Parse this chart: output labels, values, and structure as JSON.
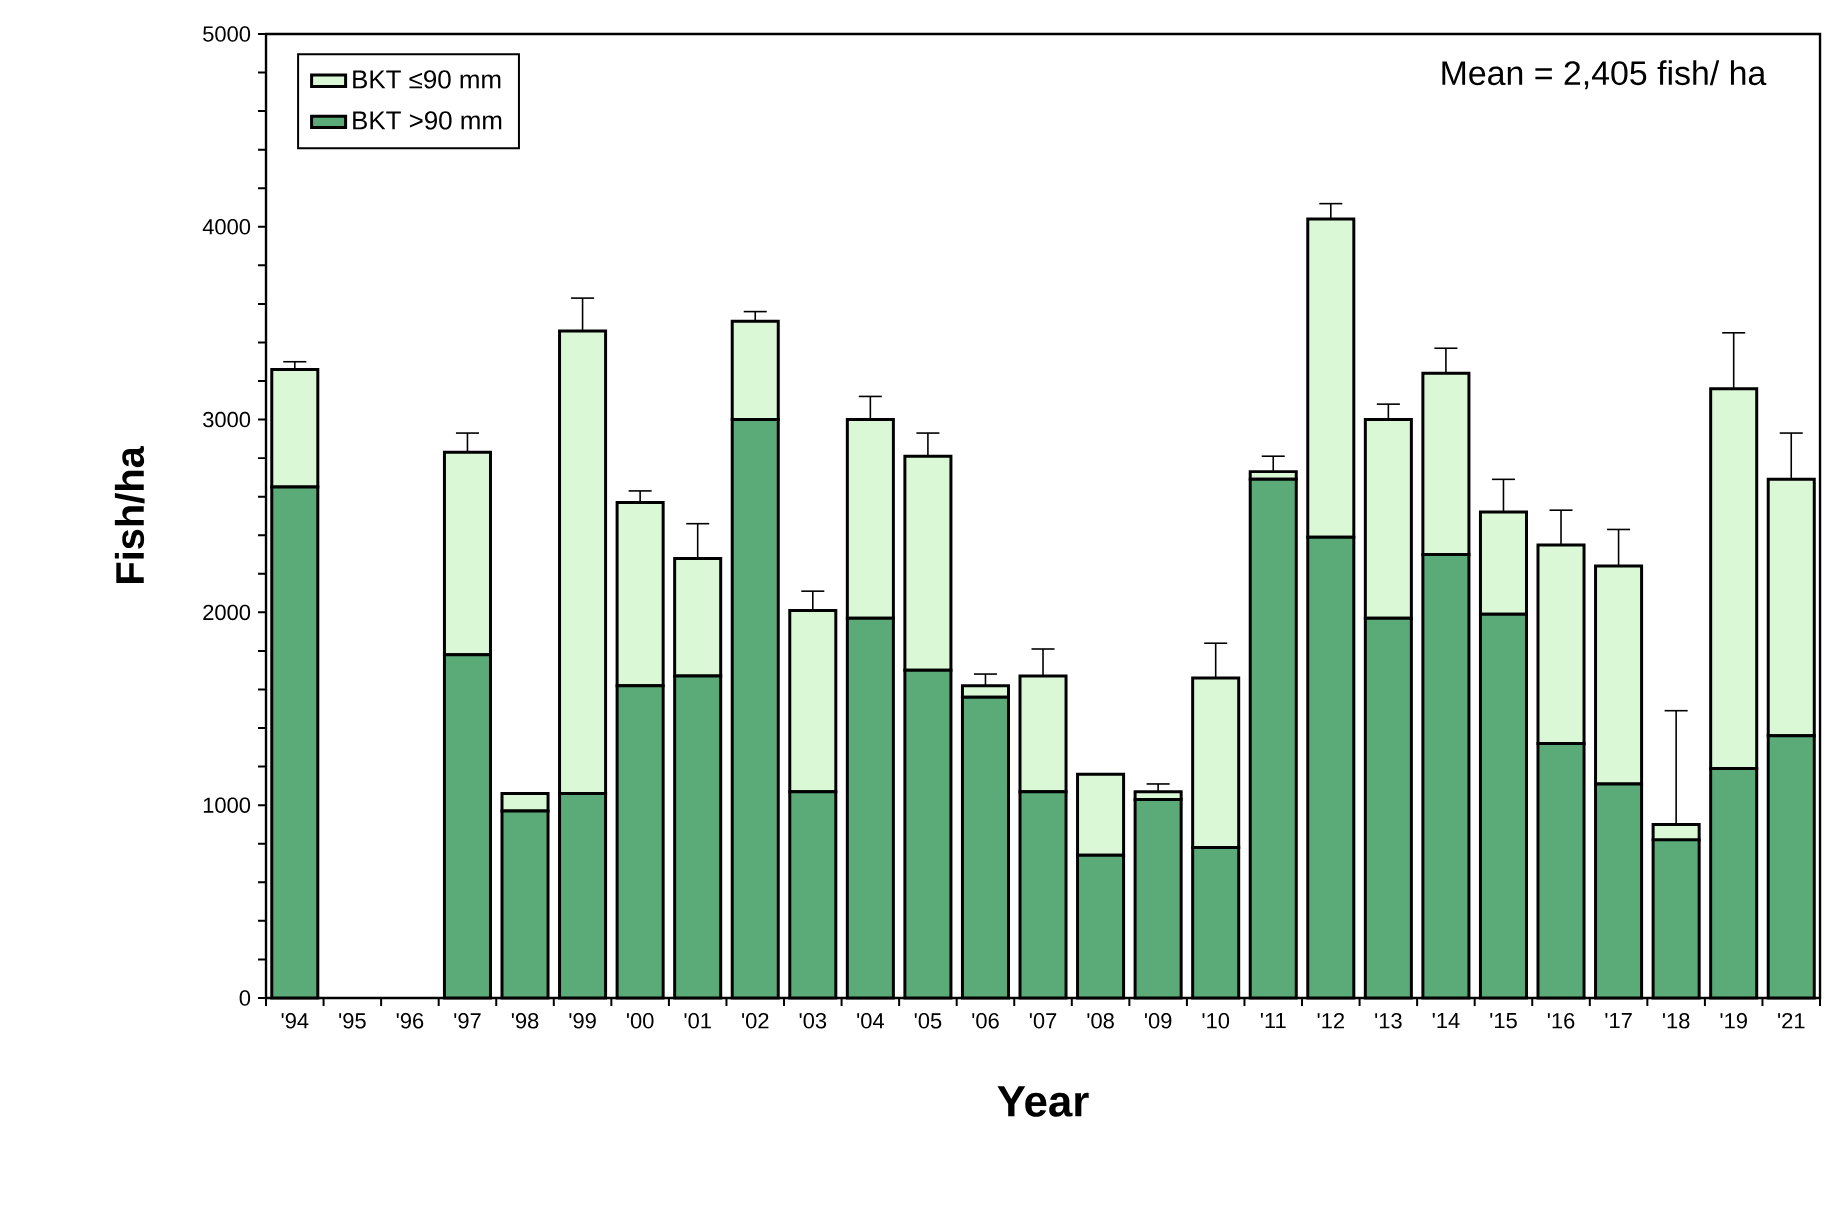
{
  "chart_data": {
    "type": "bar",
    "stacked": true,
    "xlabel": "Year",
    "ylabel": "Fish/ha",
    "categories": [
      "'94",
      "'95",
      "'96",
      "'97",
      "'98",
      "'99",
      "'00",
      "'01",
      "'02",
      "'03",
      "'04",
      "'05",
      "'06",
      "'07",
      "'08",
      "'09",
      "'10",
      "'11",
      "'12",
      "'13",
      "'14",
      "'15",
      "'16",
      "'17",
      "'18",
      "'19",
      "'21"
    ],
    "series": [
      {
        "name": "BKT >90 mm",
        "color": "#5aab78",
        "values": [
          2650,
          null,
          null,
          1780,
          970,
          1060,
          1620,
          1670,
          3000,
          1070,
          1970,
          1700,
          1560,
          1070,
          740,
          1030,
          780,
          2690,
          2390,
          1970,
          2300,
          1990,
          1320,
          1110,
          820,
          1190,
          1360
        ]
      },
      {
        "name": "BKT ≤90 mm",
        "color": "#daf7d6",
        "values": [
          610,
          null,
          null,
          1050,
          90,
          2400,
          950,
          610,
          510,
          940,
          1030,
          1110,
          60,
          600,
          420,
          40,
          880,
          40,
          1650,
          1030,
          940,
          530,
          1030,
          1130,
          80,
          1970,
          1330
        ],
        "errors": [
          40,
          null,
          null,
          100,
          null,
          170,
          60,
          180,
          50,
          100,
          120,
          120,
          60,
          140,
          null,
          40,
          180,
          80,
          80,
          80,
          130,
          170,
          180,
          190,
          590,
          290,
          240
        ]
      }
    ],
    "ylim": [
      0,
      5000
    ],
    "yticks": [
      0,
      1000,
      2000,
      3000,
      4000,
      5000
    ],
    "legend": "top left",
    "annotations": [
      "Mean = 2,405 fish/ ha"
    ]
  }
}
